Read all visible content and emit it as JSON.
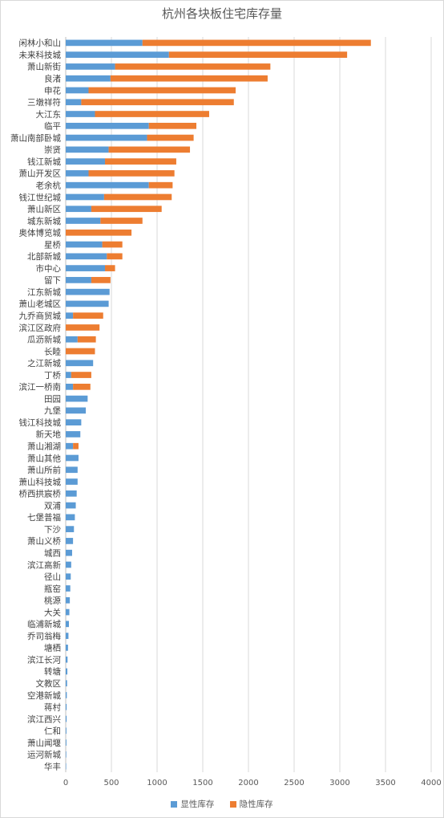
{
  "chart_data": {
    "type": "bar",
    "orientation": "horizontal",
    "stacked": true,
    "title": "杭州各块板住宅库存量",
    "xlim": [
      0,
      4000
    ],
    "xticks": [
      0,
      500,
      1000,
      1500,
      2000,
      2500,
      3000,
      3500,
      4000
    ],
    "grid": true,
    "legend_position": "bottom",
    "categories": [
      "闲林小和山",
      "未来科技城",
      "萧山新街",
      "良渚",
      "申花",
      "三墩祥符",
      "大江东",
      "临平",
      "萧山南部卧城",
      "崇贤",
      "钱江新城",
      "萧山开发区",
      "老余杭",
      "钱江世纪城",
      "萧山新区",
      "城东新城",
      "奥体博览城",
      "星桥",
      "北部新城",
      "市中心",
      "留下",
      "江东新城",
      "萧山老城区",
      "九乔商贸城",
      "滨江区政府",
      "瓜沥新城",
      "长睦",
      "之江新城",
      "丁桥",
      "滨江一桥南",
      "田园",
      "九堡",
      "钱江科技城",
      "新天地",
      "萧山湘湖",
      "萧山其他",
      "萧山所前",
      "萧山科技城",
      "桥西拱宸桥",
      "双浦",
      "七堡普福",
      "下沙",
      "萧山义桥",
      "城西",
      "滨江高新",
      "径山",
      "瓶窑",
      "桃源",
      "大关",
      "临浦新城",
      "乔司翁梅",
      "塘栖",
      "滨江长河",
      "转塘",
      "文教区",
      "空港新城",
      "蒋村",
      "滨江西兴",
      "仁和",
      "萧山闻堰",
      "运河新城",
      "华丰"
    ],
    "series": [
      {
        "name": "显性库存",
        "color": "#5b9bd5",
        "values": [
          840,
          1130,
          540,
          490,
          250,
          170,
          320,
          910,
          890,
          470,
          430,
          250,
          910,
          420,
          280,
          380,
          0,
          400,
          450,
          430,
          280,
          480,
          470,
          80,
          0,
          130,
          0,
          300,
          60,
          80,
          240,
          220,
          170,
          160,
          80,
          140,
          130,
          130,
          120,
          110,
          100,
          90,
          80,
          70,
          60,
          55,
          50,
          45,
          40,
          35,
          30,
          25,
          20,
          18,
          15,
          12,
          10,
          10,
          8,
          8,
          6,
          5
        ]
      },
      {
        "name": "隐性库存",
        "color": "#ed7d31",
        "values": [
          2500,
          1950,
          1700,
          1720,
          1610,
          1670,
          1250,
          520,
          510,
          890,
          780,
          940,
          260,
          740,
          770,
          460,
          720,
          220,
          170,
          110,
          210,
          0,
          0,
          330,
          370,
          200,
          320,
          0,
          220,
          190,
          0,
          0,
          0,
          0,
          60,
          0,
          0,
          0,
          0,
          0,
          0,
          0,
          0,
          0,
          0,
          0,
          0,
          0,
          0,
          0,
          0,
          0,
          0,
          0,
          0,
          0,
          0,
          0,
          0,
          0,
          0,
          0
        ]
      }
    ]
  }
}
